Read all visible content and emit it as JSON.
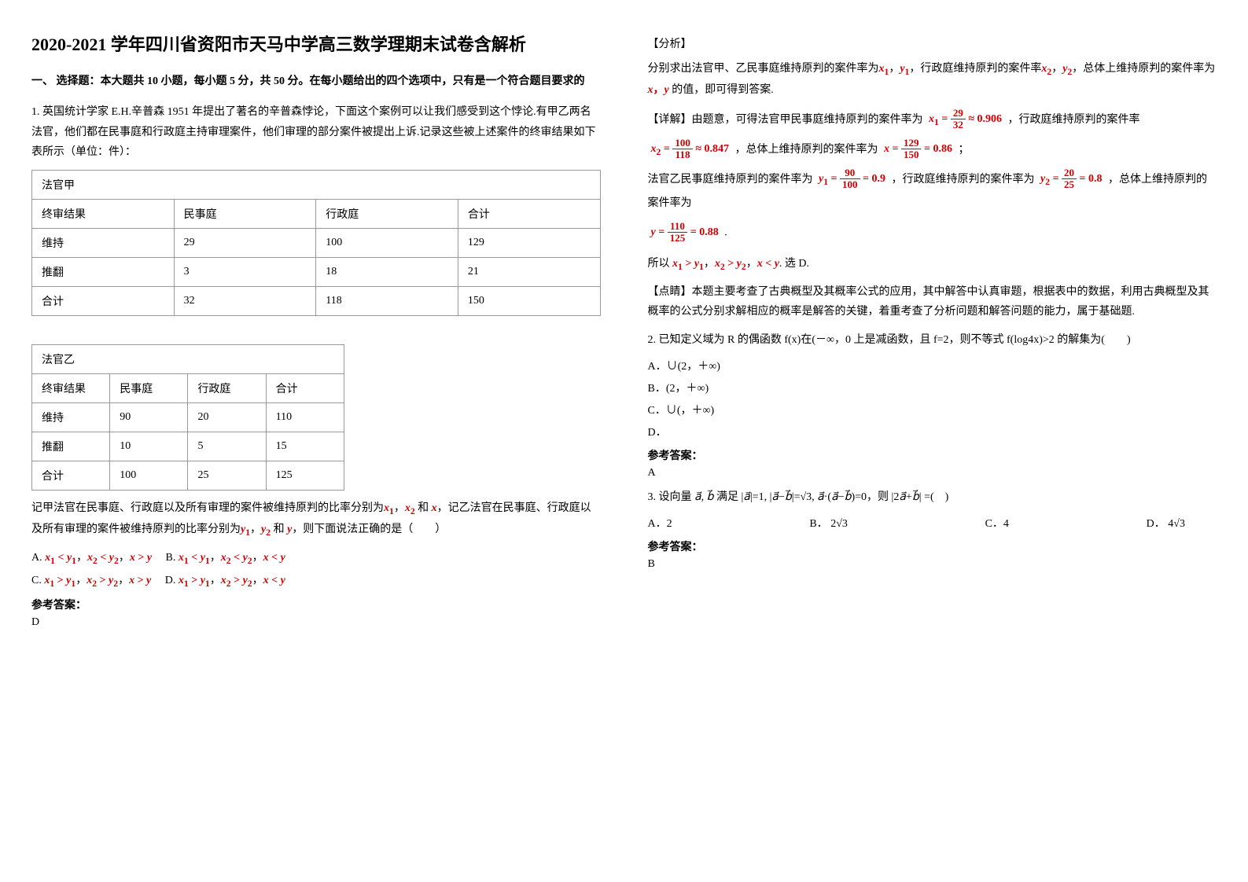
{
  "title": "2020-2021 学年四川省资阳市天马中学高三数学理期末试卷含解析",
  "section1_title": "一、 选择题：本大题共 10 小题，每小题 5 分，共 50 分。在每小题给出的四个选项中，只有是一个符合题目要求的",
  "q1": {
    "text": "1. 英国统计学家 E.H.辛普森 1951 年提出了著名的辛普森悖论，下面这个案例可以让我们感受到这个悖论.有甲乙两名法官，他们都在民事庭和行政庭主持审理案件，他们审理的部分案件被提出上诉.记录这些被上述案件的终审结果如下表所示（单位：件）：",
    "table1_caption": "法官甲",
    "table1_headers": [
      "终审结果",
      "民事庭",
      "行政庭",
      "合计"
    ],
    "table1_rows": [
      [
        "维持",
        "29",
        "100",
        "129"
      ],
      [
        "推翻",
        "3",
        "18",
        "21"
      ],
      [
        "合计",
        "32",
        "118",
        "150"
      ]
    ],
    "table2_caption": "法官乙",
    "table2_headers": [
      "终审结果",
      "民事庭",
      "行政庭",
      "合计"
    ],
    "table2_rows": [
      [
        "维持",
        "90",
        "20",
        "110"
      ],
      [
        "推翻",
        "10",
        "5",
        "15"
      ],
      [
        "合计",
        "100",
        "25",
        "125"
      ]
    ],
    "post_text1": "记甲法官在民事庭、行政庭以及所有审理的案件被维持原判的比率分别为",
    "post_text2": "，记乙法官在民事庭、行政庭以及所有审理的案件被维持原判的比率分别为",
    "post_text3": "，则下面说法正确的是（　　）",
    "answer_label": "参考答案：",
    "answer": "D",
    "analysis_label": "【分析】",
    "analysis_text1": "分别求出法官甲、乙民事庭维持原判的案件率为",
    "analysis_text2": "，行政庭维持原判的案件率",
    "analysis_text3": "，总体上维持原判的案件率为",
    "analysis_text4": "的值，即可得到答案.",
    "detail_label": "【详解】由题意，可得法官甲民事庭维持原判的案件率为",
    "detail_t1": "，行政庭维持原判的案件率",
    "detail_t2": "，总体上维持原判的案件率为",
    "detail_t3": "；",
    "detail_t4": "法官乙民事庭维持原判的案件率为",
    "detail_t5": "，行政庭维持原判的案件率为",
    "detail_t6": "，总体上维持原判的案件率为",
    "detail_t7": ".",
    "conclusion_prefix": "所以",
    "conclusion_suffix": ". 选 D.",
    "comment_label": "【点睛】本题主要考查了古典概型及其概率公式的应用，其中解答中认真审题，根据表中的数据，利用古典概型及其概率的公式分别求解相应的概率是解答的关键，着重考查了分析问题和解答问题的能力，属于基础题.",
    "x1_num": "29",
    "x1_den": "32",
    "x1_val": "0.906",
    "x2_num": "100",
    "x2_den": "118",
    "x2_val": "0.847",
    "x_num": "129",
    "x_den": "150",
    "x_val": "0.86",
    "y1_num": "90",
    "y1_den": "100",
    "y1_val": "0.9",
    "y2_num": "20",
    "y2_den": "25",
    "y2_val": "0.8",
    "y_num": "110",
    "y_den": "125",
    "y_val": "0.88"
  },
  "q2": {
    "text": "2. 已知定义域为 R 的偶函数 f(x)在(－∞，0 上是减函数，且 f=2，则不等式 f(log4x)>2 的解集为(　　)",
    "optA": "A．∪(2，＋∞)",
    "optB": "B．(2，＋∞)",
    "optC": "C．∪(，＋∞)",
    "optD": "D．",
    "answer_label": "参考答案：",
    "answer": "A"
  },
  "q3": {
    "text_prefix": "3. 设向量",
    "text_mid": "满足",
    "text_suffix": "，则",
    "text_end": "=(　)",
    "optA": "A．2",
    "optB_prefix": "B．",
    "optB_val": "2√3",
    "optC": "C．4",
    "optD_prefix": "D．",
    "optD_val": "4√3",
    "answer_label": "参考答案：",
    "answer": "B"
  },
  "var_labels": {
    "x1": "x₁",
    "x2": "x₂",
    "x": "x",
    "y1": "y₁",
    "y2": "y₂",
    "y": "y"
  },
  "opt_prefixes": {
    "A": "A.",
    "B": "B.",
    "C": "C.",
    "D": "D."
  },
  "symbols": {
    "and": "和",
    "comma": "，",
    "approx": "≈",
    "eq": "="
  }
}
